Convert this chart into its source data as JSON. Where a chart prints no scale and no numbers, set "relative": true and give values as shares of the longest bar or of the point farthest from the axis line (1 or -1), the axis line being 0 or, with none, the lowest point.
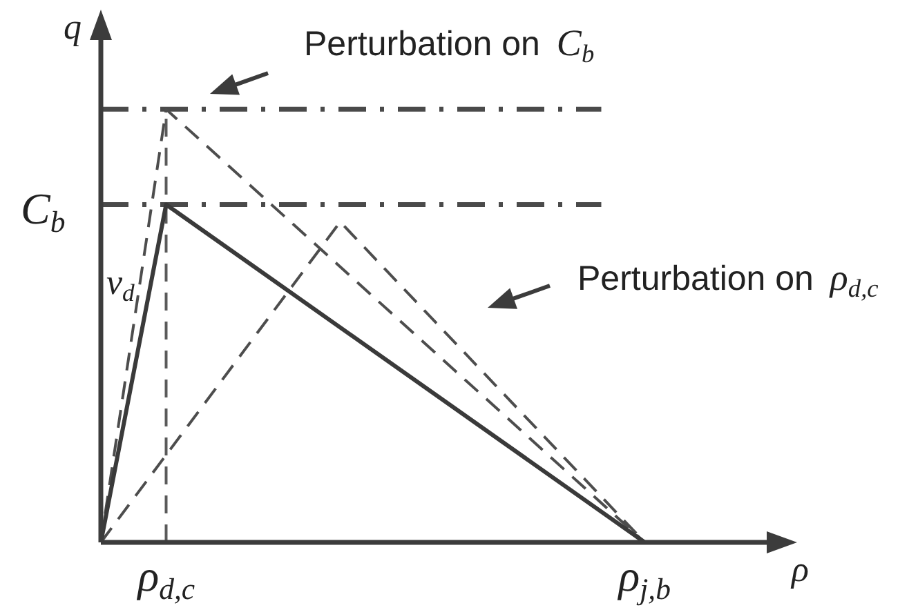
{
  "chart_data": {
    "type": "line",
    "relative": true,
    "xlabel": "ρ",
    "ylabel": "q",
    "categories": [
      null,
      null,
      null,
      "ρ$_{d,c}$",
      null,
      null,
      null,
      null,
      null,
      null,
      null,
      null,
      null,
      null,
      null,
      null,
      null,
      null,
      null,
      null,
      null,
      null,
      null,
      null,
      null,
      "ρ$_{j,b}$",
      null,
      null,
      null,
      null,
      null,
      null,
      null
    ],
    "series": [
      {
        "values": [
          0,
          null,
          null,
          0.78,
          null,
          null,
          null,
          null,
          null,
          null,
          null,
          null,
          null,
          null,
          null,
          null,
          null,
          null,
          null,
          null,
          null,
          null,
          null,
          null,
          null,
          0,
          null,
          null,
          null,
          null,
          null,
          null,
          null
        ],
        "color": "#3a3a3a",
        "line_style": "solid"
      },
      {
        "values": [
          0,
          null,
          null,
          1,
          null,
          null,
          null,
          null,
          null,
          null,
          null,
          null,
          null,
          null,
          null,
          null,
          null,
          null,
          null,
          null,
          null,
          null,
          null,
          null,
          null,
          0,
          null,
          null,
          null,
          null,
          null,
          null,
          null
        ],
        "color": "#4d4d4d",
        "line_style": "dashed"
      },
      {
        "values": [
          0,
          null,
          null,
          null,
          null,
          null,
          null,
          null,
          null,
          null,
          null,
          0.74,
          null,
          null,
          null,
          null,
          null,
          null,
          null,
          null,
          null,
          null,
          null,
          null,
          null,
          0,
          null,
          null,
          null,
          null,
          null,
          null,
          null
        ],
        "color": "#4d4d4d",
        "line_style": "dashed"
      },
      {
        "values": [
          1,
          null,
          null,
          null,
          null,
          null,
          null,
          null,
          null,
          null,
          null,
          null,
          null,
          null,
          null,
          null,
          null,
          null,
          null,
          null,
          null,
          null,
          null,
          1,
          null,
          null,
          null,
          null,
          null,
          null,
          null,
          null,
          null
        ],
        "color": "#4a4a4a",
        "line_style": "dashdot"
      },
      {
        "values": [
          0.78,
          null,
          null,
          null,
          null,
          null,
          null,
          null,
          null,
          null,
          null,
          null,
          null,
          null,
          null,
          null,
          null,
          null,
          null,
          null,
          null,
          null,
          null,
          0.78,
          null,
          null,
          null,
          null,
          null,
          null,
          null,
          null,
          null
        ],
        "color": "#4a4a4a",
        "line_style": "dashdot"
      }
    ],
    "ref_lines": [
      {
        "axis": "x",
        "value": "ρ$_{d,c}$",
        "color": "#5a5a5a",
        "line_style": "dashed"
      }
    ],
    "annotations": [
      "Perturbation on C$_{b}$",
      "C$_{b}$",
      "v$_{d}$",
      "Perturbation on ρ$_{d,c}$"
    ]
  }
}
